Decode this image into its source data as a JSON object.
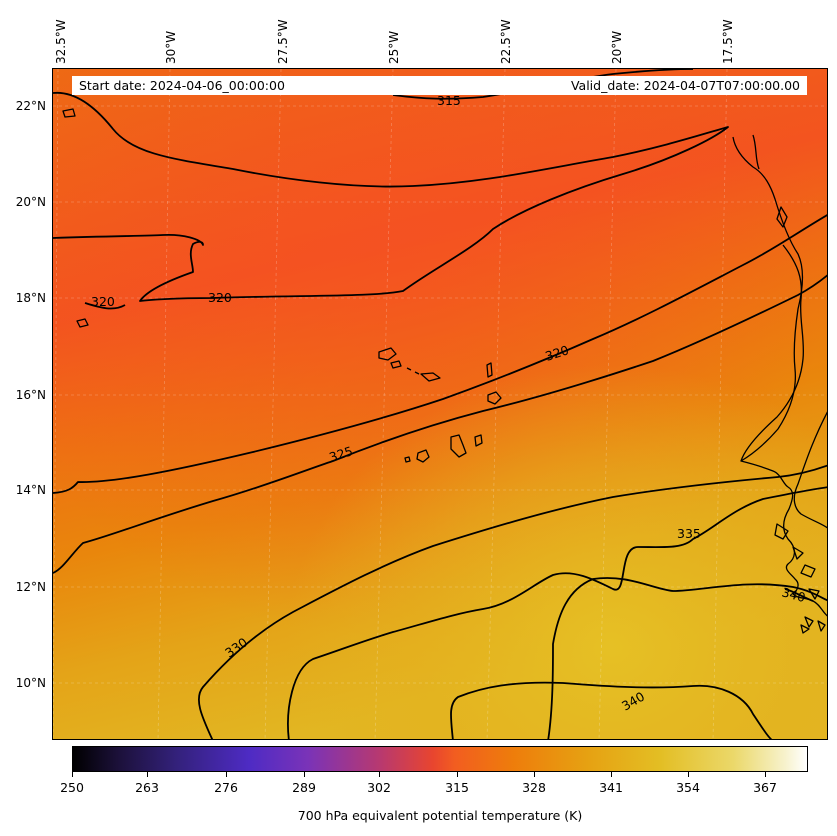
{
  "header": {
    "start_date": "Start date: 2024-04-06_00:00:00",
    "valid_date": "Valid_date: 2024-04-07T07:00:00.00"
  },
  "axes": {
    "longitude_labels": [
      "32.5°W",
      "30°W",
      "27.5°W",
      "25°W",
      "22.5°W",
      "20°W",
      "17.5°W"
    ],
    "latitude_labels": [
      "22°N",
      "20°N",
      "18°N",
      "16°N",
      "14°N",
      "12°N",
      "10°N"
    ]
  },
  "contours": {
    "labels": [
      "315",
      "320",
      "320",
      "320",
      "325",
      "330",
      "335",
      "340",
      "340"
    ],
    "line_color": "#000000"
  },
  "colorbar": {
    "title": "700 hPa equivalent potential temperature (K)",
    "ticks": [
      "250",
      "263",
      "276",
      "289",
      "302",
      "315",
      "328",
      "341",
      "354",
      "367"
    ],
    "colormap": "CMRmap-like (black-purple-red-orange-yellow-white)"
  },
  "colors": {
    "field_red": "#f2551f",
    "field_orange": "#ec7d0e",
    "field_yellow": "#e3b522",
    "coastline": "#000000"
  }
}
